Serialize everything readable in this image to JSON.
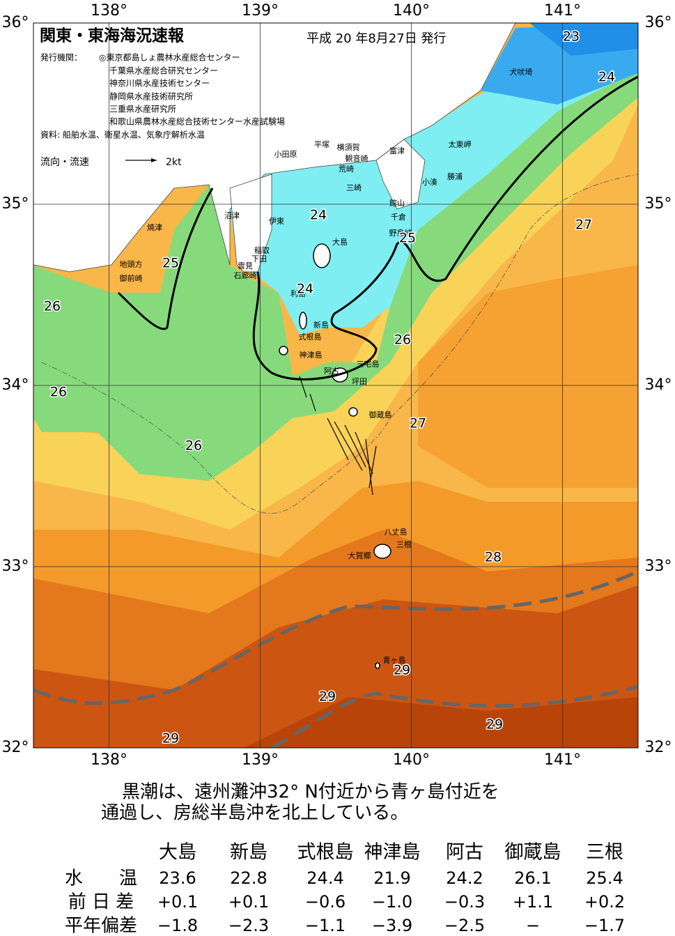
{
  "header": {
    "title": "関東・東海海況速報",
    "date": "平成 20 年8月27日 発行"
  },
  "issuers": {
    "label": "発行機関：",
    "lines": [
      "◎東京都島しょ農林水産総合センター",
      "千葉県水産総合研究センター",
      "神奈川県水産技術センター",
      "静岡県水産技術研究所",
      "三重県水産研究所",
      "和歌山県農林水産総合技術センター水産試験場"
    ]
  },
  "sources": "資料: 船舶水温、衛星水温、気象庁解析水温",
  "legend": {
    "label": "流向・流速",
    "speed": "2kt"
  },
  "map": {
    "lonlim": [
      137.5,
      141.5
    ],
    "latlim": [
      32,
      36
    ],
    "lon_ticks": [
      {
        "value": 138,
        "label": "138°"
      },
      {
        "value": 139,
        "label": "139°"
      },
      {
        "value": 140,
        "label": "140°"
      },
      {
        "value": 141,
        "label": "141°"
      }
    ],
    "lat_ticks": [
      {
        "value": 32,
        "label": "32°"
      },
      {
        "value": 33,
        "label": "33°"
      },
      {
        "value": 34,
        "label": "34°"
      },
      {
        "value": 35,
        "label": "35°"
      },
      {
        "value": 36,
        "label": "36°"
      }
    ],
    "places": [
      "小田原",
      "平塚",
      "横須賀",
      "観音崎",
      "荒崎",
      "富津",
      "太東岬",
      "勝浦",
      "小湊",
      "三崎",
      "館山",
      "千倉",
      "野島崎",
      "沼津",
      "伊東",
      "焼津",
      "稲取",
      "下田",
      "大島",
      "雲見",
      "石廊崎",
      "地頭方",
      "御前崎",
      "利島",
      "新島",
      "式根島",
      "神津島",
      "阿古",
      "三宅島",
      "坪田",
      "御蔵島",
      "八丈島",
      "三根",
      "大賀郷",
      "青ヶ島",
      "犬吠埼"
    ],
    "isotherm_labels": [
      23,
      24,
      24,
      25,
      24,
      25,
      26,
      26,
      26,
      27,
      27,
      26,
      28,
      29,
      29,
      29,
      29
    ]
  },
  "summary": [
    "黒潮は、遠州灘沖32° N付近から青ヶ島付近を",
    "通過し、房総半島沖を北上している。"
  ],
  "table": {
    "columns": [
      "大島",
      "新島",
      "式根島",
      "神津島",
      "阿古",
      "御蔵島",
      "三根"
    ],
    "rows": [
      {
        "label": "水　　温",
        "cells": [
          "23.6",
          "22.8",
          "24.4",
          "21.9",
          "24.2",
          "26.1",
          "25.4"
        ]
      },
      {
        "label": "前 日 差",
        "cells": [
          "+0.1",
          "+0.1",
          "−0.6",
          "−1.0",
          "−0.3",
          "+1.1",
          "+0.2"
        ]
      },
      {
        "label": "平年偏差",
        "cells": [
          "−1.8",
          "−2.3",
          "−1.1",
          "−3.9",
          "−2.5",
          "−",
          "−1.7"
        ]
      }
    ]
  }
}
